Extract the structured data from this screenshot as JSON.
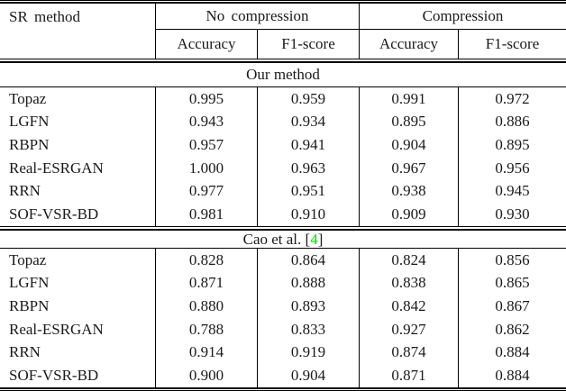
{
  "table": {
    "header": {
      "col0": "SR method",
      "groups": [
        {
          "label": "No compression",
          "subcols": [
            "Accuracy",
            "F1-score"
          ]
        },
        {
          "label": "Compression",
          "subcols": [
            "Accuracy",
            "F1-score"
          ]
        }
      ]
    },
    "citation_color": "#00e000",
    "sections": [
      {
        "title": "Our method",
        "rows": [
          {
            "method": "Topaz",
            "values": [
              "0.995",
              "0.959",
              "0.991",
              "0.972"
            ]
          },
          {
            "method": "LGFN",
            "values": [
              "0.943",
              "0.934",
              "0.895",
              "0.886"
            ]
          },
          {
            "method": "RBPN",
            "values": [
              "0.957",
              "0.941",
              "0.904",
              "0.895"
            ]
          },
          {
            "method": "Real-ESRGAN",
            "values": [
              "1.000",
              "0.963",
              "0.967",
              "0.956"
            ]
          },
          {
            "method": "RRN",
            "values": [
              "0.977",
              "0.951",
              "0.938",
              "0.945"
            ]
          },
          {
            "method": "SOF-VSR-BD",
            "values": [
              "0.981",
              "0.910",
              "0.909",
              "0.930"
            ]
          }
        ]
      },
      {
        "title_prefix": "Cao et al. [",
        "citation": "4",
        "title_suffix": "]",
        "rows": [
          {
            "method": "Topaz",
            "values": [
              "0.828",
              "0.864",
              "0.824",
              "0.856"
            ]
          },
          {
            "method": "LGFN",
            "values": [
              "0.871",
              "0.888",
              "0.838",
              "0.865"
            ]
          },
          {
            "method": "RBPN",
            "values": [
              "0.880",
              "0.893",
              "0.842",
              "0.867"
            ]
          },
          {
            "method": "Real-ESRGAN",
            "values": [
              "0.788",
              "0.833",
              "0.927",
              "0.862"
            ]
          },
          {
            "method": "RRN",
            "values": [
              "0.914",
              "0.919",
              "0.874",
              "0.884"
            ]
          },
          {
            "method": "SOF-VSR-BD",
            "values": [
              "0.900",
              "0.904",
              "0.871",
              "0.884"
            ]
          }
        ]
      }
    ]
  }
}
